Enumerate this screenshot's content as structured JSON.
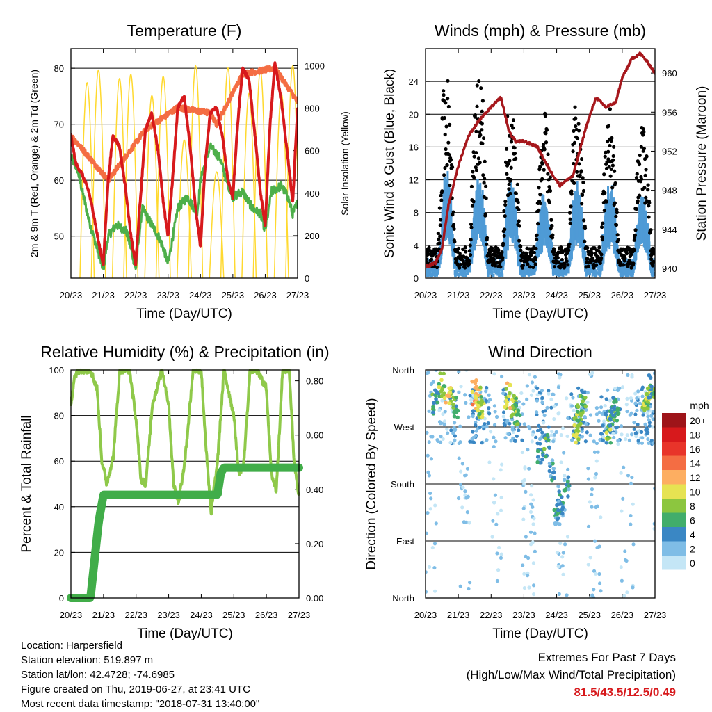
{
  "chart_data": [
    {
      "type": "line",
      "title": "Temperature (F)",
      "xlabel": "Time (Day/UTC)",
      "ylabel": "2m & 9m T (Red, Orange) & 2m Td (Green)",
      "y2label": "Solar Insolation (Yellow)",
      "x_ticks": [
        "20/23",
        "21/23",
        "22/23",
        "23/23",
        "24/23",
        "25/23",
        "26/23",
        "27/23"
      ],
      "ylim": [
        42.5,
        83.5
      ],
      "y_ticks": [
        50,
        60,
        70,
        80
      ],
      "y2lim": [
        0,
        1080
      ],
      "y2_ticks": [
        0,
        200,
        400,
        600,
        800,
        1000
      ],
      "grid": "horizontal",
      "colors": {
        "t2m": "#d7191c",
        "t9m": "#f46d43",
        "td": "#4daf4a",
        "solar": "#ffd92f"
      },
      "series": [
        {
          "name": "2m T",
          "x": [
            0,
            0.15,
            0.35,
            0.55,
            0.7,
            0.85,
            1.0,
            1.15,
            1.3,
            1.5,
            1.7,
            1.85,
            2.0,
            2.15,
            2.3,
            2.5,
            2.7,
            2.85,
            3.0,
            3.15,
            3.3,
            3.5,
            3.7,
            3.85,
            4.0,
            4.15,
            4.3,
            4.5,
            4.7,
            4.85,
            5.0,
            5.15,
            5.3,
            5.5,
            5.7,
            5.85,
            6.0,
            6.15,
            6.3,
            6.5,
            6.7,
            6.85,
            7.0
          ],
          "values": [
            68,
            63,
            61,
            58,
            54,
            49,
            45,
            60,
            68,
            66,
            58,
            50,
            45,
            57,
            69,
            72,
            65,
            56,
            50,
            61,
            73,
            75,
            65,
            55,
            48,
            63,
            72,
            73,
            67,
            60,
            57,
            70,
            80,
            78,
            67,
            58,
            52,
            70,
            81,
            74,
            64,
            56,
            73
          ]
        },
        {
          "name": "9m T",
          "x": [
            0,
            1.15,
            2.3,
            3.3,
            4.3,
            4.5,
            5.3,
            6.3,
            7.0
          ],
          "values": [
            68,
            60,
            69,
            73,
            72,
            70,
            79,
            80,
            74
          ]
        },
        {
          "name": "2m Td",
          "x": [
            0,
            0.2,
            0.35,
            0.55,
            0.7,
            0.85,
            1.0,
            1.15,
            1.4,
            1.7,
            1.85,
            2.0,
            2.2,
            2.5,
            2.7,
            2.85,
            3.0,
            3.3,
            3.6,
            3.9,
            4.0,
            4.3,
            4.6,
            4.8,
            5.0,
            5.3,
            5.6,
            5.85,
            6.0,
            6.2,
            6.5,
            6.7,
            6.85,
            7.0
          ],
          "values": [
            64,
            62,
            58,
            53,
            50,
            47,
            44,
            50,
            52,
            51,
            48,
            44,
            55,
            52,
            50,
            48,
            45,
            55,
            57,
            54,
            60,
            66,
            64,
            60,
            57,
            58,
            55,
            54,
            51,
            58,
            59,
            57,
            54,
            56
          ]
        },
        {
          "name": "Solar Insolation",
          "x": [
            0.5,
            0.85,
            1.5,
            1.85,
            2.5,
            2.85,
            3.5,
            3.85,
            4.5,
            4.85,
            5.5,
            5.85,
            6.5,
            6.85
          ],
          "values": [
            920,
            980,
            940,
            960,
            860,
            950,
            650,
            1000,
            500,
            990,
            870,
            980,
            870,
            1000
          ]
        }
      ]
    },
    {
      "type": "scatter",
      "title": "Winds (mph) & Pressure (mb)",
      "xlabel": "Time (Day/UTC)",
      "ylabel": "Sonic Wind & Gust (Blue, Black)",
      "y2label": "Station Pressure (Maroon)",
      "x_ticks": [
        "20/23",
        "21/23",
        "22/23",
        "23/23",
        "24/23",
        "25/23",
        "26/23",
        "27/23"
      ],
      "ylim": [
        0,
        28
      ],
      "y_ticks": [
        0,
        4,
        8,
        12,
        16,
        20,
        24
      ],
      "y2lim": [
        939,
        962.5
      ],
      "y2_ticks": [
        940,
        944,
        948,
        952,
        956,
        960
      ],
      "grid": "horizontal",
      "colors": {
        "wind": "#4f9bd6",
        "gust": "#000000",
        "pressure": "#a6171c"
      },
      "wind_daily_peak": [
        5,
        12,
        11,
        10,
        9,
        10,
        10,
        9
      ],
      "gust_daily_peak": [
        12,
        25,
        24,
        18,
        19,
        20,
        18,
        17
      ],
      "series": [
        {
          "name": "Station Pressure",
          "x": [
            0,
            0.3,
            0.5,
            0.7,
            1.0,
            1.3,
            1.6,
            2.0,
            2.3,
            2.55,
            2.75,
            3.0,
            3.4,
            3.8,
            4.1,
            4.5,
            4.7,
            4.9,
            5.2,
            5.5,
            5.8,
            6.0,
            6.3,
            6.55,
            6.8,
            7.0
          ],
          "values": [
            940.2,
            940.5,
            942.0,
            946.5,
            950.5,
            953.5,
            955.0,
            956.5,
            957.5,
            954.0,
            953.0,
            953.0,
            952.5,
            950.0,
            948.5,
            949.5,
            952.0,
            954.5,
            957.5,
            956.5,
            957.0,
            959.5,
            961.5,
            962.0,
            961.0,
            960.0
          ]
        }
      ]
    },
    {
      "type": "line",
      "title": "Relative Humidity (%) & Precipitation (in)",
      "xlabel": "Time (Day/UTC)",
      "ylabel": "Percent & Total Rainfall",
      "x_ticks": [
        "20/23",
        "21/23",
        "22/23",
        "23/23",
        "24/23",
        "25/23",
        "26/23",
        "27/23"
      ],
      "ylim": [
        0,
        100
      ],
      "y_ticks": [
        0,
        20,
        40,
        60,
        80,
        100
      ],
      "y2lim": [
        0,
        0.84
      ],
      "y2_ticks": [
        "0.00",
        "0.20",
        "0.40",
        "0.60",
        "0.80"
      ],
      "grid": "horizontal",
      "colors": {
        "rh": "#8fc94a",
        "precip": "#41ad49"
      },
      "series": [
        {
          "name": "Relative Humidity",
          "x": [
            0,
            0.1,
            0.3,
            0.6,
            0.8,
            0.95,
            1.1,
            1.3,
            1.5,
            1.8,
            2.0,
            2.15,
            2.3,
            2.5,
            2.8,
            3.0,
            3.15,
            3.3,
            3.5,
            3.75,
            4.0,
            4.15,
            4.3,
            4.5,
            4.7,
            5.0,
            5.15,
            5.3,
            5.5,
            5.7,
            6.0,
            6.15,
            6.3,
            6.5,
            6.7,
            6.85,
            7.0
          ],
          "values": [
            84,
            97,
            100,
            100,
            92,
            60,
            50,
            62,
            100,
            100,
            78,
            52,
            50,
            85,
            100,
            85,
            50,
            42,
            60,
            100,
            100,
            65,
            37,
            60,
            100,
            80,
            55,
            58,
            100,
            100,
            92,
            55,
            47,
            100,
            100,
            60,
            45
          ]
        },
        {
          "name": "Total Precipitation",
          "x": [
            0,
            0.5,
            0.6,
            0.85,
            1.0,
            1.5,
            3.5,
            4.5,
            4.6,
            4.7,
            5.5,
            7.0
          ],
          "values": [
            0.0,
            0.0,
            0.0,
            0.28,
            0.38,
            0.38,
            0.38,
            0.38,
            0.46,
            0.48,
            0.48,
            0.48
          ]
        }
      ]
    },
    {
      "type": "scatter",
      "title": "Wind Direction",
      "xlabel": "Time (Day/UTC)",
      "ylabel": "Direction (Colored By Speed)",
      "x_ticks": [
        "20/23",
        "21/23",
        "22/23",
        "23/23",
        "24/23",
        "25/23",
        "26/23",
        "27/23"
      ],
      "y_categories": [
        "North",
        "East",
        "South",
        "West",
        "North"
      ],
      "ylim": [
        0,
        360
      ],
      "grid": "horizontal",
      "legend": {
        "title": "mph",
        "labels": [
          "20+",
          "18",
          "16",
          "14",
          "12",
          "10",
          "8",
          "6",
          "4",
          "2",
          "0"
        ],
        "colors": [
          "#9e1419",
          "#d7191c",
          "#e8342a",
          "#f46d43",
          "#fdae61",
          "#e6e352",
          "#8cc63f",
          "#41ad6b",
          "#3a87c4",
          "#7fbde6",
          "#c4e6f6"
        ]
      },
      "points": [
        {
          "x": 0.3,
          "dir": 310,
          "speed": 6
        },
        {
          "x": 0.5,
          "dir": 335,
          "speed": 8
        },
        {
          "x": 0.7,
          "dir": 320,
          "speed": 10
        },
        {
          "x": 0.9,
          "dir": 300,
          "speed": 6
        },
        {
          "x": 1.5,
          "dir": 325,
          "speed": 12
        },
        {
          "x": 1.6,
          "dir": 315,
          "speed": 10
        },
        {
          "x": 1.7,
          "dir": 305,
          "speed": 8
        },
        {
          "x": 2.5,
          "dir": 320,
          "speed": 10
        },
        {
          "x": 2.7,
          "dir": 300,
          "speed": 8
        },
        {
          "x": 2.8,
          "dir": 290,
          "speed": 6
        },
        {
          "x": 3.5,
          "dir": 230,
          "speed": 4
        },
        {
          "x": 3.7,
          "dir": 240,
          "speed": 6
        },
        {
          "x": 3.85,
          "dir": 200,
          "speed": 4
        },
        {
          "x": 4.0,
          "dir": 130,
          "speed": 4
        },
        {
          "x": 4.1,
          "dir": 150,
          "speed": 4
        },
        {
          "x": 4.3,
          "dir": 180,
          "speed": 4
        },
        {
          "x": 4.6,
          "dir": 265,
          "speed": 8
        },
        {
          "x": 4.7,
          "dir": 285,
          "speed": 8
        },
        {
          "x": 4.8,
          "dir": 310,
          "speed": 6
        },
        {
          "x": 5.6,
          "dir": 265,
          "speed": 8
        },
        {
          "x": 5.7,
          "dir": 285,
          "speed": 6
        },
        {
          "x": 5.8,
          "dir": 300,
          "speed": 6
        },
        {
          "x": 6.7,
          "dir": 315,
          "speed": 8
        },
        {
          "x": 6.8,
          "dir": 325,
          "speed": 8
        },
        {
          "x": 6.9,
          "dir": 335,
          "speed": 6
        }
      ]
    }
  ],
  "info": {
    "location": "Location: Harpersfield",
    "elevation": "Station elevation: 519.897 m",
    "latlon": "Station lat/lon: 42.4728; -74.6985",
    "created": "Figure created on Thu, 2019-06-27, at 23:41 UTC",
    "recent": "Most recent data timestamp: \"2018-07-31 13:40:00\""
  },
  "extremes": {
    "title": "Extremes For Past 7 Days",
    "subtitle": "(High/Low/Max Wind/Total Precipitation)",
    "values": "81.5/43.5/12.5/0.49"
  }
}
